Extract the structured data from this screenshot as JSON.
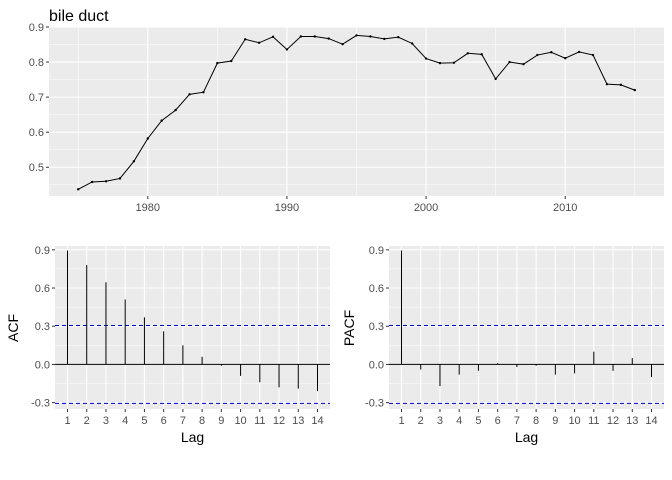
{
  "colors": {
    "panel": "#ebebeb",
    "line": "#000000",
    "conf_band": "#0000cc",
    "zero_line": "#000000"
  },
  "chart_data": [
    {
      "type": "line",
      "title": "bile duct",
      "xlabel": "",
      "ylabel": "",
      "xlim": [
        1972.9,
        2017.1
      ],
      "ylim": [
        0.418,
        0.9
      ],
      "x_ticks": [
        1980,
        1990,
        2000,
        2010
      ],
      "y_ticks": [
        0.5,
        0.6,
        0.7,
        0.8,
        0.9
      ],
      "grid": true,
      "series": [
        {
          "x": [
            1975,
            1976,
            1977,
            1978,
            1979,
            1980,
            1981,
            1982,
            1983,
            1984,
            1985,
            1986,
            1987,
            1988,
            1989,
            1990,
            1991,
            1992,
            1993,
            1994,
            1995,
            1996,
            1997,
            1998,
            1999,
            2000,
            2001,
            2002,
            2003,
            2004,
            2005,
            2006,
            2007,
            2008,
            2009,
            2010,
            2011,
            2012,
            2013,
            2014,
            2015
          ],
          "values": [
            0.437,
            0.458,
            0.46,
            0.468,
            0.517,
            0.582,
            0.633,
            0.663,
            0.708,
            0.714,
            0.797,
            0.803,
            0.865,
            0.855,
            0.872,
            0.836,
            0.873,
            0.873,
            0.867,
            0.851,
            0.876,
            0.873,
            0.866,
            0.871,
            0.853,
            0.81,
            0.797,
            0.798,
            0.825,
            0.822,
            0.752,
            0.8,
            0.794,
            0.82,
            0.828,
            0.811,
            0.829,
            0.82,
            0.737,
            0.735,
            0.72
          ]
        }
      ]
    },
    {
      "type": "bar",
      "title": "",
      "xlabel": "Lag",
      "ylabel": "ACF",
      "categories": [
        1,
        2,
        3,
        4,
        5,
        6,
        7,
        8,
        9,
        10,
        11,
        12,
        13,
        14
      ],
      "values": [
        0.895,
        0.78,
        0.645,
        0.51,
        0.37,
        0.26,
        0.15,
        0.06,
        -0.01,
        -0.09,
        -0.14,
        -0.18,
        -0.19,
        -0.21
      ],
      "ylim": [
        -0.35,
        0.93
      ],
      "y_ticks": [
        -0.3,
        0.0,
        0.3,
        0.6,
        0.9
      ],
      "y_tick_labels": [
        "-0.3",
        "0.0",
        "0.3",
        "0.6",
        "0.9"
      ],
      "confidence_bound": 0.306,
      "grid": true
    },
    {
      "type": "bar",
      "title": "",
      "xlabel": "Lag",
      "ylabel": "PACF",
      "categories": [
        1,
        2,
        3,
        4,
        5,
        6,
        7,
        8,
        9,
        10,
        11,
        12,
        13,
        14
      ],
      "values": [
        0.895,
        -0.04,
        -0.17,
        -0.08,
        -0.05,
        0.01,
        -0.02,
        -0.01,
        -0.08,
        -0.07,
        0.1,
        -0.05,
        0.05,
        -0.1
      ],
      "ylim": [
        -0.35,
        0.93
      ],
      "y_ticks": [
        -0.3,
        0.0,
        0.3,
        0.6,
        0.9
      ],
      "y_tick_labels": [
        "-0.3",
        "0.0",
        "0.3",
        "0.6",
        "0.9"
      ],
      "confidence_bound": 0.306,
      "grid": true
    }
  ]
}
